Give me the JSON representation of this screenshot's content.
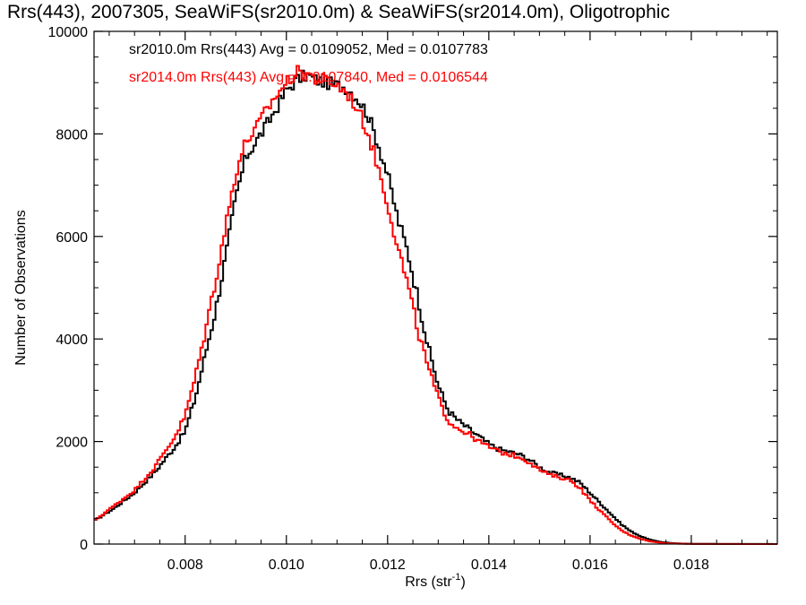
{
  "chart_data": {
    "type": "line",
    "title": "Rrs(443), 2007305, SeaWiFS(sr2010.0m) & SeaWiFS(sr2014.0m), Oligotrophic",
    "xlabel": "Rrs (str",
    "xlabel_sup": "-1",
    "xlabel_close": ")",
    "ylabel": "Number of Observations",
    "xlim": [
      0.0062,
      0.0197
    ],
    "ylim": [
      0,
      10000
    ],
    "xticks": [
      0.008,
      0.01,
      0.012,
      0.014,
      0.016,
      0.018
    ],
    "xtick_labels": [
      "0.008",
      "0.010",
      "0.012",
      "0.014",
      "0.016",
      "0.018"
    ],
    "yticks": [
      0,
      2000,
      4000,
      6000,
      8000,
      10000
    ],
    "ytick_labels": [
      "0",
      "2000",
      "4000",
      "6000",
      "8000",
      "10000"
    ],
    "legend_position": "top-left",
    "series": [
      {
        "name": "sr2010.0m Rrs(443) Avg = 0.0109052, Med = 0.0107783",
        "color": "#000000",
        "step": true,
        "x": [
          0.0062,
          0.0066,
          0.007,
          0.0074,
          0.0078,
          0.008,
          0.0082,
          0.0084,
          0.0086,
          0.0088,
          0.009,
          0.0092,
          0.0094,
          0.0096,
          0.0098,
          0.01,
          0.0102,
          0.0104,
          0.0106,
          0.0108,
          0.011,
          0.0112,
          0.0114,
          0.0116,
          0.0118,
          0.012,
          0.0122,
          0.0124,
          0.0126,
          0.0128,
          0.013,
          0.0132,
          0.0134,
          0.0136,
          0.0138,
          0.014,
          0.0142,
          0.0144,
          0.0146,
          0.0148,
          0.015,
          0.0152,
          0.0154,
          0.0156,
          0.0158,
          0.016,
          0.0162,
          0.0164,
          0.0166,
          0.0168,
          0.017,
          0.0172,
          0.0174,
          0.0176,
          0.0178,
          0.018,
          0.0185,
          0.019,
          0.0197
        ],
        "y": [
          450,
          700,
          1000,
          1400,
          1900,
          2200,
          2850,
          3700,
          4550,
          5600,
          6750,
          7550,
          7850,
          8150,
          8500,
          8850,
          9050,
          9150,
          9050,
          9000,
          8950,
          8900,
          8700,
          8400,
          7850,
          7200,
          6350,
          5700,
          4800,
          3850,
          3100,
          2600,
          2400,
          2250,
          2100,
          1950,
          1850,
          1800,
          1750,
          1650,
          1500,
          1400,
          1350,
          1300,
          1200,
          1000,
          800,
          600,
          400,
          250,
          150,
          80,
          40,
          20,
          10,
          5,
          3,
          2,
          1
        ]
      },
      {
        "name": "sr2014.0m Rrs(443) Avg = 0.0107840, Med = 0.0106544",
        "color": "#ff0000",
        "step": true,
        "x": [
          0.0062,
          0.0066,
          0.007,
          0.0074,
          0.0078,
          0.008,
          0.0082,
          0.0084,
          0.0086,
          0.0088,
          0.009,
          0.0092,
          0.0094,
          0.0096,
          0.0098,
          0.01,
          0.0102,
          0.0104,
          0.0106,
          0.0108,
          0.011,
          0.0112,
          0.0114,
          0.0116,
          0.0118,
          0.012,
          0.0122,
          0.0124,
          0.0126,
          0.0128,
          0.013,
          0.0132,
          0.0134,
          0.0136,
          0.0138,
          0.014,
          0.0142,
          0.0144,
          0.0146,
          0.0148,
          0.015,
          0.0152,
          0.0154,
          0.0156,
          0.0158,
          0.016,
          0.0162,
          0.0164,
          0.0166,
          0.0168,
          0.017,
          0.0172,
          0.0174,
          0.0176,
          0.0178,
          0.018,
          0.0185,
          0.019,
          0.0197
        ],
        "y": [
          450,
          750,
          1050,
          1500,
          2100,
          2500,
          3250,
          4150,
          5150,
          6200,
          7250,
          7850,
          8100,
          8450,
          8750,
          9000,
          9200,
          9200,
          9050,
          9050,
          8950,
          8800,
          8500,
          8050,
          7400,
          6650,
          5800,
          5050,
          4150,
          3450,
          2850,
          2400,
          2250,
          2150,
          2000,
          1900,
          1800,
          1750,
          1700,
          1600,
          1450,
          1350,
          1300,
          1250,
          1100,
          850,
          650,
          450,
          280,
          170,
          100,
          50,
          25,
          12,
          6,
          3,
          2,
          1,
          1
        ]
      }
    ]
  }
}
